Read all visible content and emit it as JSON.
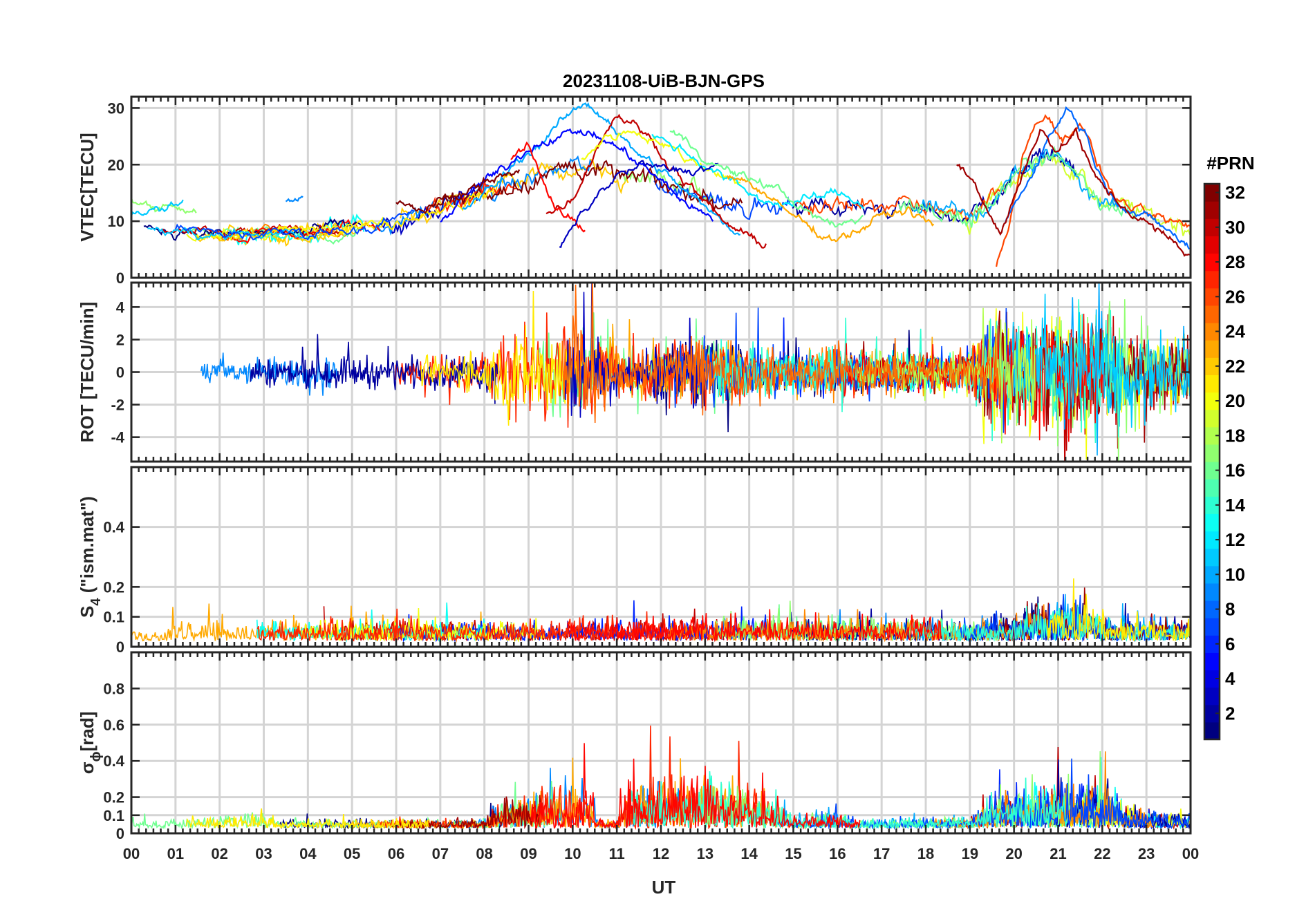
{
  "chart_data": {
    "title": "20231108-UiB-BJN-GPS",
    "type": "line",
    "xlabel": "UT",
    "x_ticks": [
      "00",
      "01",
      "02",
      "03",
      "04",
      "05",
      "06",
      "07",
      "08",
      "09",
      "10",
      "11",
      "12",
      "13",
      "14",
      "15",
      "16",
      "17",
      "18",
      "19",
      "20",
      "21",
      "22",
      "23",
      "00"
    ],
    "xlim_hours": [
      0,
      24
    ],
    "grid": true,
    "colorbar": {
      "title": "#PRN",
      "range": [
        1,
        32
      ],
      "ticks": [
        "2",
        "4",
        "6",
        "8",
        "10",
        "12",
        "14",
        "16",
        "18",
        "20",
        "22",
        "24",
        "26",
        "28",
        "30",
        "32"
      ],
      "colormap": "jet"
    },
    "panels": [
      {
        "name": "vtec",
        "ylabel": "VTEC[TECU]",
        "ylim": [
          0,
          32
        ],
        "yticks": [
          0,
          10,
          20,
          30
        ],
        "ytick_labels": [
          "0",
          "10",
          "20",
          "30"
        ],
        "baseline": [
          [
            0,
            9
          ],
          [
            2,
            7.5
          ],
          [
            4,
            8
          ],
          [
            6,
            10
          ],
          [
            8,
            15
          ],
          [
            10,
            20
          ],
          [
            12,
            16
          ],
          [
            14,
            13
          ],
          [
            16,
            12.5
          ],
          [
            18,
            12
          ],
          [
            19,
            10
          ],
          [
            20,
            18
          ],
          [
            21,
            22
          ],
          [
            22,
            13
          ],
          [
            24,
            9
          ]
        ],
        "noise": 1.0,
        "series": [
          {
            "prn": 10,
            "points": [
              [
                7.5,
                12
              ],
              [
                8.2,
                16
              ],
              [
                8.8,
                21
              ],
              [
                9.3,
                24
              ],
              [
                9.8,
                28
              ],
              [
                10.3,
                31
              ],
              [
                10.8,
                28
              ],
              [
                11.3,
                23
              ],
              [
                12,
                19
              ],
              [
                12.6,
                15
              ],
              [
                13.2,
                11
              ],
              [
                13.8,
                8
              ]
            ]
          },
          {
            "prn": 30,
            "points": [
              [
                9.4,
                11
              ],
              [
                10,
                14
              ],
              [
                10.6,
                24
              ],
              [
                11,
                29
              ],
              [
                11.6,
                26
              ],
              [
                12.2,
                20
              ],
              [
                12.8,
                15
              ],
              [
                13.4,
                10
              ],
              [
                14,
                7
              ],
              [
                14.4,
                6
              ]
            ]
          },
          {
            "prn": 5,
            "points": [
              [
                7,
                10
              ],
              [
                7.8,
                16
              ],
              [
                8.4,
                19
              ],
              [
                9,
                23
              ],
              [
                9.6,
                25
              ],
              [
                10.2,
                26
              ],
              [
                10.8,
                24
              ],
              [
                11.4,
                21
              ],
              [
                12,
                17
              ],
              [
                12.6,
                13
              ],
              [
                13.2,
                10
              ]
            ]
          },
          {
            "prn": 20,
            "points": [
              [
                10.2,
                21
              ],
              [
                10.8,
                25
              ],
              [
                11.4,
                26
              ],
              [
                12,
                24
              ],
              [
                12.6,
                21
              ],
              [
                13.2,
                19
              ],
              [
                13.8,
                17
              ]
            ]
          },
          {
            "prn": 12,
            "points": [
              [
                11.8,
                25
              ],
              [
                12.4,
                23
              ],
              [
                13,
                20
              ],
              [
                13.6,
                17
              ],
              [
                14.2,
                14
              ],
              [
                14.8,
                13
              ],
              [
                15.4,
                14
              ],
              [
                16,
                15
              ],
              [
                16.6,
                13
              ]
            ]
          },
          {
            "prn": 23,
            "points": [
              [
                13.5,
                18
              ],
              [
                14,
                17
              ],
              [
                14.6,
                13
              ],
              [
                15.2,
                10
              ],
              [
                15.8,
                7
              ],
              [
                16.4,
                8
              ],
              [
                17,
                11
              ],
              [
                17.6,
                12
              ],
              [
                18.2,
                9
              ]
            ]
          },
          {
            "prn": 28,
            "points": [
              [
                8.6,
                21
              ],
              [
                9,
                24
              ],
              [
                9.2,
                19
              ],
              [
                9.6,
                13
              ],
              [
                10,
                10
              ],
              [
                10.3,
                8
              ]
            ]
          },
          {
            "prn": 3,
            "points": [
              [
                9.7,
                5
              ],
              [
                10.1,
                10
              ],
              [
                10.5,
                14
              ],
              [
                11,
                18
              ],
              [
                11.6,
                20
              ],
              [
                12.2,
                19
              ],
              [
                12.8,
                19
              ],
              [
                13.3,
                20
              ]
            ]
          },
          {
            "prn": 32,
            "points": [
              [
                6.0,
                13
              ],
              [
                6.6,
                12
              ],
              [
                7.2,
                14
              ],
              [
                7.8,
                16
              ],
              [
                8.4,
                18
              ],
              [
                8.8,
                19
              ]
            ]
          },
          {
            "prn": 16,
            "points": [
              [
                12.2,
                26
              ],
              [
                12.6,
                24
              ],
              [
                13.2,
                20
              ],
              [
                13.8,
                18
              ],
              [
                14.6,
                16
              ],
              [
                15.4,
                11
              ],
              [
                16,
                9
              ],
              [
                16.6,
                11
              ]
            ]
          },
          {
            "prn": 26,
            "points": [
              [
                19.6,
                2
              ],
              [
                19.9,
                10
              ],
              [
                20.2,
                22
              ],
              [
                20.5,
                27
              ],
              [
                20.8,
                29
              ],
              [
                21.1,
                24
              ],
              [
                21.5,
                28
              ],
              [
                21.9,
                20
              ],
              [
                22.3,
                14
              ],
              [
                23,
                11
              ],
              [
                24,
                9
              ]
            ]
          },
          {
            "prn": 8,
            "points": [
              [
                19.8,
                10
              ],
              [
                20.3,
                17
              ],
              [
                20.8,
                25
              ],
              [
                21.2,
                30
              ],
              [
                21.6,
                26
              ],
              [
                22,
                17
              ],
              [
                22.6,
                12
              ],
              [
                23.4,
                9
              ],
              [
                24,
                5
              ]
            ]
          },
          {
            "prn": 31,
            "points": [
              [
                18.7,
                20
              ],
              [
                19.1,
                17
              ],
              [
                19.4,
                12
              ],
              [
                19.7,
                8
              ],
              [
                20.1,
                16
              ],
              [
                20.6,
                27
              ],
              [
                21,
                22
              ],
              [
                21.4,
                26
              ],
              [
                21.8,
                18
              ],
              [
                22.4,
                13
              ],
              [
                24,
                4
              ]
            ]
          },
          {
            "prn": 17,
            "points": [
              [
                0,
                14
              ],
              [
                0.5,
                12
              ],
              [
                1.0,
                13
              ],
              [
                1.5,
                12
              ]
            ]
          },
          {
            "prn": 11,
            "points": [
              [
                0,
                11
              ],
              [
                0.7,
                12
              ],
              [
                1.2,
                14
              ]
            ]
          },
          {
            "prn": 9,
            "points": [
              [
                3.5,
                13
              ],
              [
                3.9,
                14
              ]
            ]
          }
        ]
      },
      {
        "name": "rot",
        "ylabel": "ROT [TECU/min]",
        "ylim": [
          -5.5,
          5.5
        ],
        "yticks": [
          -4,
          -2,
          0,
          2,
          4
        ],
        "ytick_labels": [
          "-4",
          "-2",
          "0",
          "2",
          "4"
        ],
        "baseline": [
          [
            0,
            0
          ],
          [
            24,
            0
          ]
        ],
        "noise_profile": [
          [
            0,
            0.8
          ],
          [
            2,
            0.9
          ],
          [
            4,
            1.0
          ],
          [
            5,
            1.1
          ],
          [
            7,
            1.0
          ],
          [
            8,
            1.2
          ],
          [
            8.5,
            3.0
          ],
          [
            10.5,
            3.2
          ],
          [
            11,
            1.4
          ],
          [
            12,
            2.0
          ],
          [
            13,
            2.2
          ],
          [
            14,
            1.6
          ],
          [
            15,
            1.2
          ],
          [
            16,
            1.6
          ],
          [
            17,
            1.1
          ],
          [
            19,
            1.2
          ],
          [
            19.5,
            3.5
          ],
          [
            22,
            3.8
          ],
          [
            22.5,
            2.4
          ],
          [
            24,
            2.2
          ]
        ]
      },
      {
        "name": "s4",
        "ylabel": "S",
        "ylabel_sub": "4",
        "ylabel_rest": " (\"ism.mat\")",
        "ylim": [
          0,
          0.6
        ],
        "yticks": [
          0,
          0.1,
          0.2,
          0.4
        ],
        "ytick_labels": [
          "0",
          "0.1",
          "0.2",
          "0.4"
        ],
        "noise_profile": [
          [
            0,
            0.05
          ],
          [
            2,
            0.07
          ],
          [
            5,
            0.08
          ],
          [
            8,
            0.07
          ],
          [
            10,
            0.08
          ],
          [
            14,
            0.09
          ],
          [
            17,
            0.09
          ],
          [
            19,
            0.07
          ],
          [
            20.5,
            0.13
          ],
          [
            21.5,
            0.14
          ],
          [
            22,
            0.09
          ],
          [
            24,
            0.07
          ]
        ]
      },
      {
        "name": "sigma_phi",
        "ylabel": "σ",
        "ylabel_sub": "ϕ",
        "ylabel_rest": "[rad]",
        "ylim": [
          0,
          1.0
        ],
        "yticks": [
          0,
          0.1,
          0.2,
          0.4,
          0.6,
          0.8
        ],
        "ytick_labels": [
          "0",
          "0.1",
          "0.2",
          "0.4",
          "0.6",
          "0.8"
        ],
        "noise_profile": [
          [
            0,
            0.05
          ],
          [
            2,
            0.07
          ],
          [
            2.8,
            0.12
          ],
          [
            3.2,
            0.06
          ],
          [
            8,
            0.05
          ],
          [
            8.5,
            0.2
          ],
          [
            10.4,
            0.25
          ],
          [
            10.6,
            0.05
          ],
          [
            11,
            0.05
          ],
          [
            11.3,
            0.3
          ],
          [
            12.2,
            0.3
          ],
          [
            12.6,
            0.3
          ],
          [
            13.2,
            0.3
          ],
          [
            13.8,
            0.25
          ],
          [
            14.4,
            0.2
          ],
          [
            15,
            0.06
          ],
          [
            16,
            0.12
          ],
          [
            16.3,
            0.06
          ],
          [
            19,
            0.06
          ],
          [
            19.6,
            0.22
          ],
          [
            22,
            0.28
          ],
          [
            22.6,
            0.12
          ],
          [
            24,
            0.08
          ]
        ]
      }
    ]
  }
}
